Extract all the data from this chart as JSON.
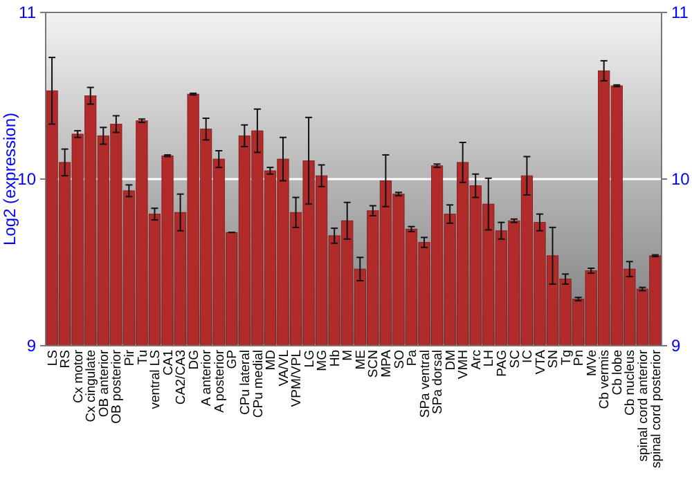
{
  "chart_data": {
    "type": "bar",
    "ylabel": "Log2 (expression)",
    "categories": [
      "LS",
      "RS",
      "Cx motor",
      "Cx cingulate",
      "OB anterior",
      "OB posterior",
      "Pir",
      "Tu",
      "ventral LS",
      "CA1",
      "CA2/CA3",
      "DG",
      "A anterior",
      "A posterior",
      "GP",
      "CPu lateral",
      "CPu medial",
      "MD",
      "VA/VL",
      "VPM/VPL",
      "LG",
      "MG",
      "Hb",
      "M",
      "ME",
      "SCN",
      "MPA",
      "SO",
      "Pa",
      "SPa ventral",
      "SPa dorsal",
      "DM",
      "VMH",
      "Arc",
      "LH",
      "PAG",
      "SC",
      "IC",
      "VTA",
      "SN",
      "Tg",
      "Pn",
      "MVe",
      "Cb vermis",
      "Cb lobe",
      "Cb nucleus",
      "spinal cord anterior",
      "spinal cord posterior"
    ],
    "values": [
      10.53,
      10.1,
      10.27,
      10.5,
      10.26,
      10.33,
      9.93,
      10.35,
      9.79,
      10.14,
      9.8,
      10.51,
      10.3,
      10.12,
      9.68,
      10.26,
      10.29,
      10.05,
      10.12,
      9.8,
      10.11,
      10.02,
      9.66,
      9.75,
      9.46,
      9.81,
      9.99,
      9.91,
      9.7,
      9.62,
      10.08,
      9.79,
      10.1,
      9.96,
      9.85,
      9.69,
      9.75,
      10.02,
      9.74,
      9.54,
      9.4,
      9.28,
      9.45,
      10.65,
      10.56,
      9.46,
      9.34,
      9.54
    ],
    "errors": [
      0.2,
      0.08,
      0.02,
      0.05,
      0.05,
      0.05,
      0.035,
      0.01,
      0.035,
      0.005,
      0.11,
      0.005,
      0.065,
      0.05,
      0,
      0.065,
      0.13,
      0.02,
      0.13,
      0.09,
      0.26,
      0.065,
      0.045,
      0.11,
      0.07,
      0.03,
      0.155,
      0.01,
      0.015,
      0.03,
      0.01,
      0.055,
      0.12,
      0.07,
      0.155,
      0.05,
      0.01,
      0.115,
      0.05,
      0.17,
      0.03,
      0.01,
      0.015,
      0.06,
      0.005,
      0.045,
      0.01,
      0.005
    ],
    "color": "#b22b2b",
    "ylim": [
      9,
      11
    ],
    "yticks": [
      9,
      10,
      11
    ],
    "y2lim": [
      9,
      11
    ],
    "y2ticks": [
      9,
      10,
      11
    ],
    "grid": "y"
  }
}
